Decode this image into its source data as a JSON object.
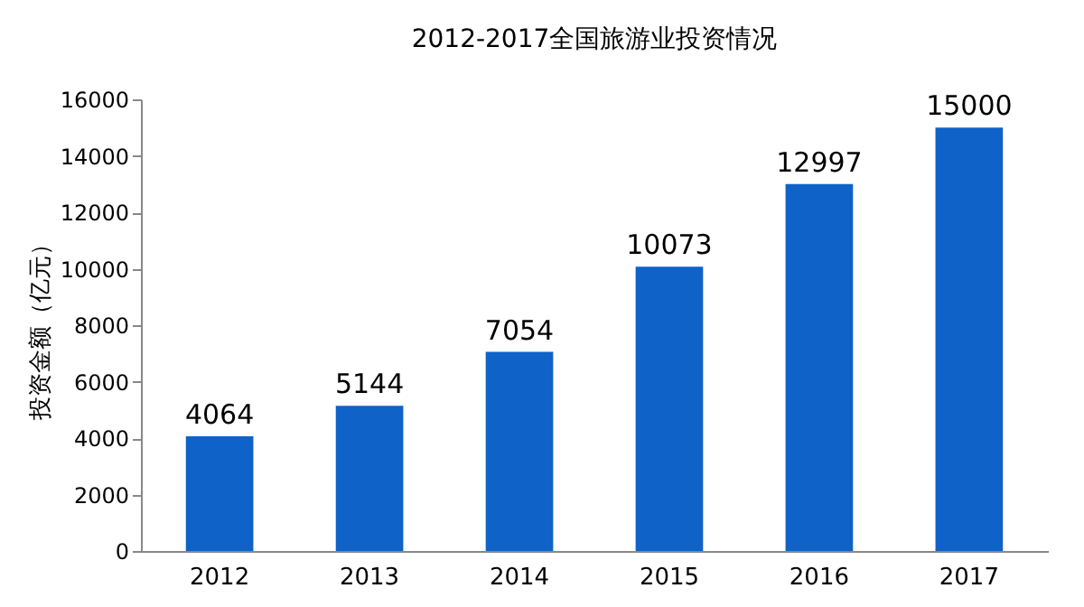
{
  "chart_data": {
    "type": "bar",
    "title": "2012-2017全国旅游业投资情况",
    "ylabel": "投资金额（亿元）",
    "categories": [
      "2012",
      "2013",
      "2014",
      "2015",
      "2016",
      "2017"
    ],
    "values": [
      4064,
      5144,
      7054,
      10073,
      12997,
      15000
    ],
    "color": "#0e62c8",
    "ylim": [
      0,
      16000
    ],
    "yticks": [
      0,
      2000,
      4000,
      6000,
      8000,
      10000,
      12000,
      14000,
      16000
    ],
    "grid": false,
    "data_labels": true
  }
}
